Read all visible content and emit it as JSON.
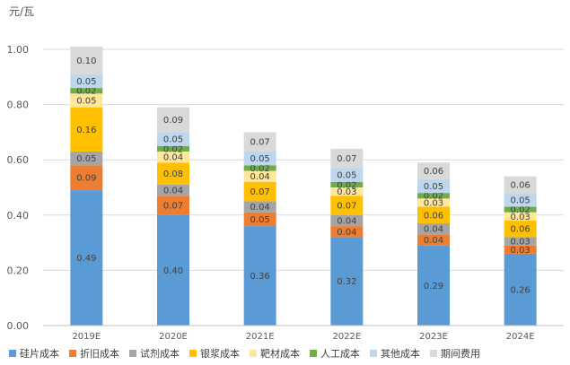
{
  "chart_data": {
    "type": "bar",
    "stacked": true,
    "unit_label": "元/瓦",
    "categories": [
      "2019E",
      "2020E",
      "2021E",
      "2022E",
      "2023E",
      "2024E"
    ],
    "ylim": [
      0,
      1.0
    ],
    "yticks": [
      "0.00",
      "0.20",
      "0.40",
      "0.60",
      "0.80",
      "1.00"
    ],
    "grid": true,
    "legend_position": "bottom",
    "series": [
      {
        "name": "硅片成本",
        "color": "#5b9bd5",
        "values": [
          0.49,
          0.4,
          0.36,
          0.32,
          0.29,
          0.26
        ],
        "labels": [
          "0.49",
          "0.40",
          "0.36",
          "0.32",
          "0.29",
          "0.26"
        ]
      },
      {
        "name": "折旧成本",
        "color": "#ed7d31",
        "values": [
          0.09,
          0.07,
          0.05,
          0.04,
          0.04,
          0.03
        ],
        "labels": [
          "0.09",
          "0.07",
          "0.05",
          "0.04",
          "0.04",
          "0.03"
        ]
      },
      {
        "name": "试剂成本",
        "color": "#a5a5a5",
        "values": [
          0.05,
          0.04,
          0.04,
          0.04,
          0.04,
          0.03
        ],
        "labels": [
          "0.05",
          "0.04",
          "0.04",
          "0.04",
          "0.04",
          "0.03"
        ]
      },
      {
        "name": "银浆成本",
        "color": "#ffc000",
        "values": [
          0.16,
          0.08,
          0.07,
          0.07,
          0.06,
          0.06
        ],
        "labels": [
          "0.16",
          "0.08",
          "0.07",
          "0.07",
          "0.06",
          "0.06"
        ]
      },
      {
        "name": "靶材成本",
        "color": "#ffe699",
        "values": [
          0.05,
          0.04,
          0.04,
          0.03,
          0.03,
          0.03
        ],
        "labels": [
          "0.05",
          "0.04",
          "0.04",
          "0.03",
          "0.03",
          "0.03"
        ]
      },
      {
        "name": "人工成本",
        "color": "#70ad47",
        "values": [
          0.02,
          0.02,
          0.02,
          0.02,
          0.02,
          0.02
        ],
        "labels": [
          "0.02",
          "0.02",
          "0.02",
          "0.02",
          "0.02",
          "0.02"
        ]
      },
      {
        "name": "其他成本",
        "color": "#bdd7ee",
        "values": [
          0.05,
          0.05,
          0.05,
          0.05,
          0.05,
          0.05
        ],
        "labels": [
          "0.05",
          "0.05",
          "0.05",
          "0.05",
          "0.05",
          "0.05"
        ]
      },
      {
        "name": "期间费用",
        "color": "#d9d9d9",
        "values": [
          0.1,
          0.09,
          0.07,
          0.07,
          0.06,
          0.06
        ],
        "labels": [
          "0.10",
          "0.09",
          "0.07",
          "0.07",
          "0.06",
          "0.06"
        ]
      }
    ]
  }
}
